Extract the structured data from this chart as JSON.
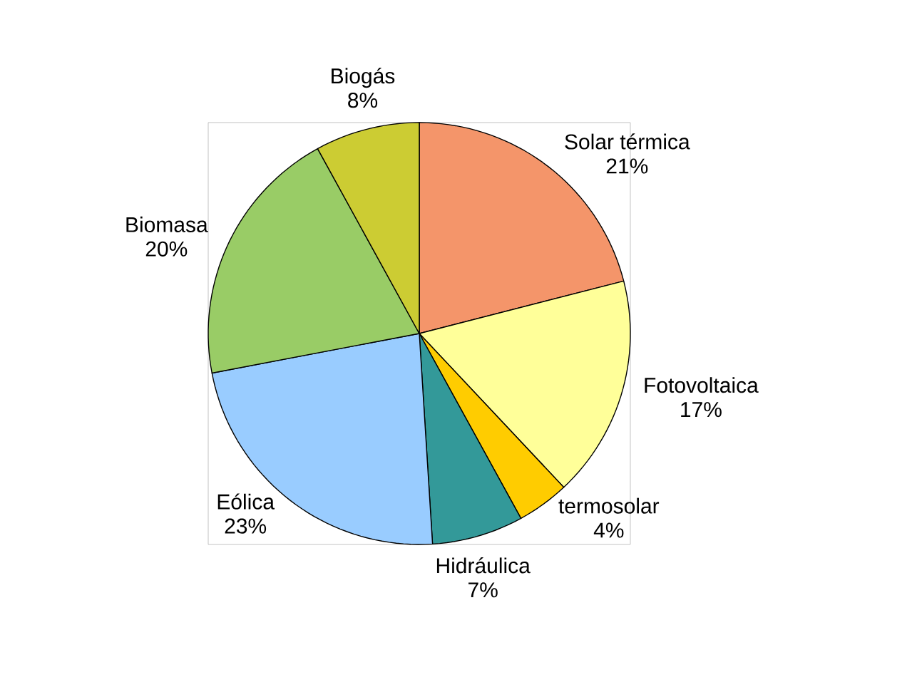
{
  "chart_data": {
    "type": "pie",
    "categories": [
      "Solar térmica",
      "Fotovoltaica",
      "termosolar",
      "Hidráulica",
      "Eólica",
      "Biomasa",
      "Biogás"
    ],
    "values": [
      21,
      17,
      4,
      7,
      23,
      20,
      8
    ],
    "value_labels": [
      "21%",
      "17%",
      "4%",
      "7%",
      "23%",
      "20%",
      "8%"
    ],
    "colors": [
      "#f4956a",
      "#ffff99",
      "#ffcc00",
      "#339999",
      "#99ccff",
      "#99cc66",
      "#cccc33"
    ]
  }
}
